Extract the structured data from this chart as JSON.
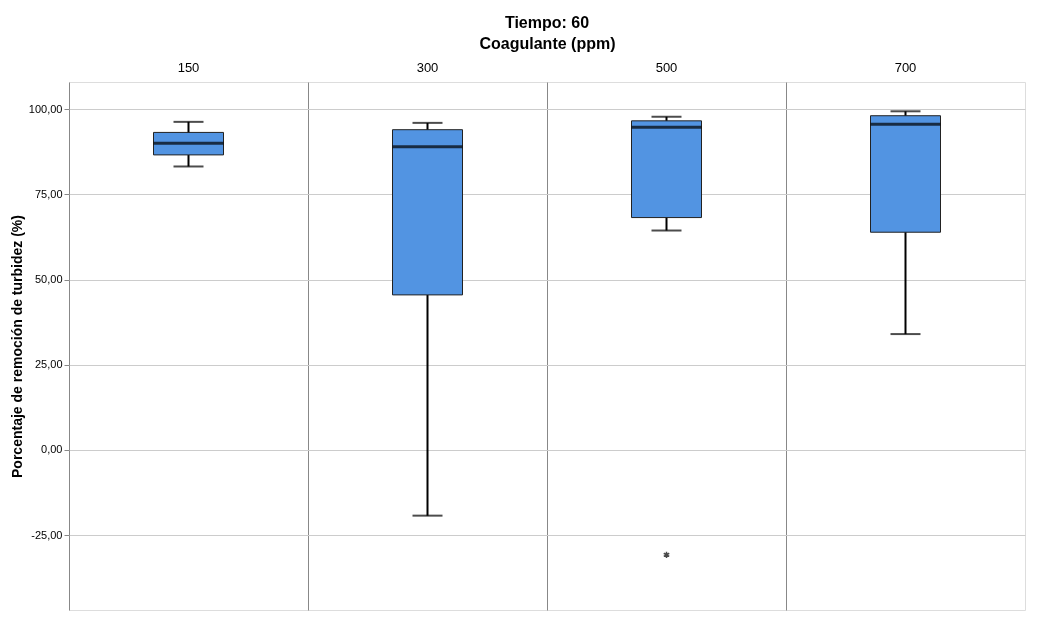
{
  "chart_data": {
    "type": "box",
    "title": "Tiempo: 60",
    "xlabel": "Coagulante (ppm)",
    "ylabel": "Porcentaje de remoción de turbidez (%)",
    "categories": [
      "150",
      "300",
      "500",
      "700"
    ],
    "series": [
      {
        "color": "#5294e2",
        "boxes": [
          {
            "low": 83.2,
            "q1": 86.6,
            "median": 90.0,
            "q3": 93.2,
            "high": 96.3
          },
          {
            "low": -19.3,
            "q1": 45.5,
            "median": 89.0,
            "q3": 94.0,
            "high": 96.0
          },
          {
            "low": 64.4,
            "q1": 68.2,
            "median": 94.7,
            "q3": 96.6,
            "high": 97.8,
            "outliers": [
              -30.8
            ]
          },
          {
            "low": 34.0,
            "q1": 63.9,
            "median": 95.6,
            "q3": 98.1,
            "high": 99.4
          }
        ]
      }
    ],
    "ylim": [
      -47,
      108
    ],
    "yticks": [
      {
        "value": -25,
        "label": "-25,00"
      },
      {
        "value": 0,
        "label": "0,00"
      },
      {
        "value": 25,
        "label": "25,00"
      },
      {
        "value": 50,
        "label": "50,00"
      },
      {
        "value": 75,
        "label": "75,00"
      },
      {
        "value": 100,
        "label": "100,00"
      }
    ],
    "grid": "y",
    "marker": "star"
  }
}
